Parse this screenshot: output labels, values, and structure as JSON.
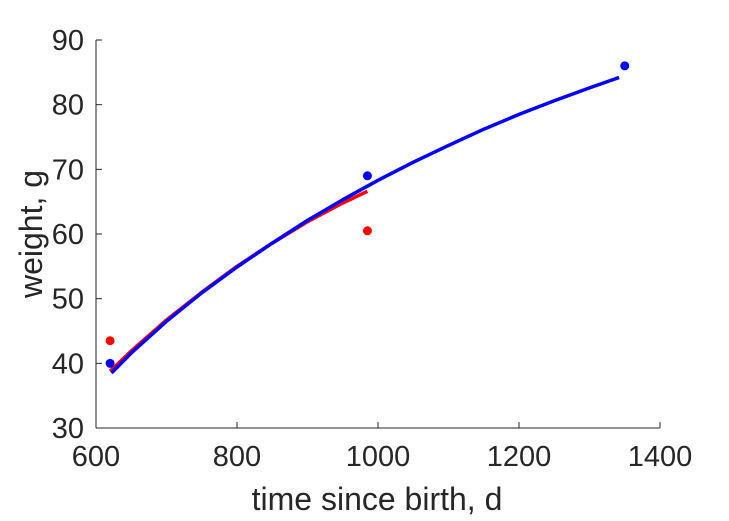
{
  "chart_data": {
    "type": "scatter",
    "title": "",
    "xlabel": "time since birth, d",
    "ylabel": "weight, g",
    "xlim": [
      600,
      1400
    ],
    "ylim": [
      30,
      90
    ],
    "xticks": [
      600,
      800,
      1000,
      1200,
      1400
    ],
    "yticks": [
      30,
      40,
      50,
      60,
      70,
      80,
      90
    ],
    "grid": false,
    "legend": "none",
    "series": [
      {
        "kind": "points",
        "color": "#ff0000",
        "x": [
          620,
          985
        ],
        "y": [
          43.5,
          60.5
        ]
      },
      {
        "kind": "points",
        "color": "#0000ff",
        "x": [
          620,
          985,
          1350
        ],
        "y": [
          40,
          69,
          86
        ]
      },
      {
        "kind": "line",
        "color": "#ff0000",
        "x": [
          620,
          650,
          700,
          750,
          800,
          850,
          900,
          950,
          985
        ],
        "y": [
          38.8,
          41.9,
          46.7,
          51.0,
          55.0,
          58.6,
          61.9,
          64.8,
          66.6
        ]
      },
      {
        "kind": "line",
        "color": "#0000ff",
        "x": [
          622,
          650,
          700,
          750,
          800,
          850,
          900,
          950,
          1000,
          1050,
          1100,
          1150,
          1200,
          1250,
          1300,
          1342
        ],
        "y": [
          38.5,
          41.6,
          46.5,
          50.9,
          54.9,
          58.6,
          62.1,
          65.3,
          68.3,
          71.1,
          73.7,
          76.2,
          78.5,
          80.6,
          82.6,
          84.2
        ]
      }
    ]
  }
}
